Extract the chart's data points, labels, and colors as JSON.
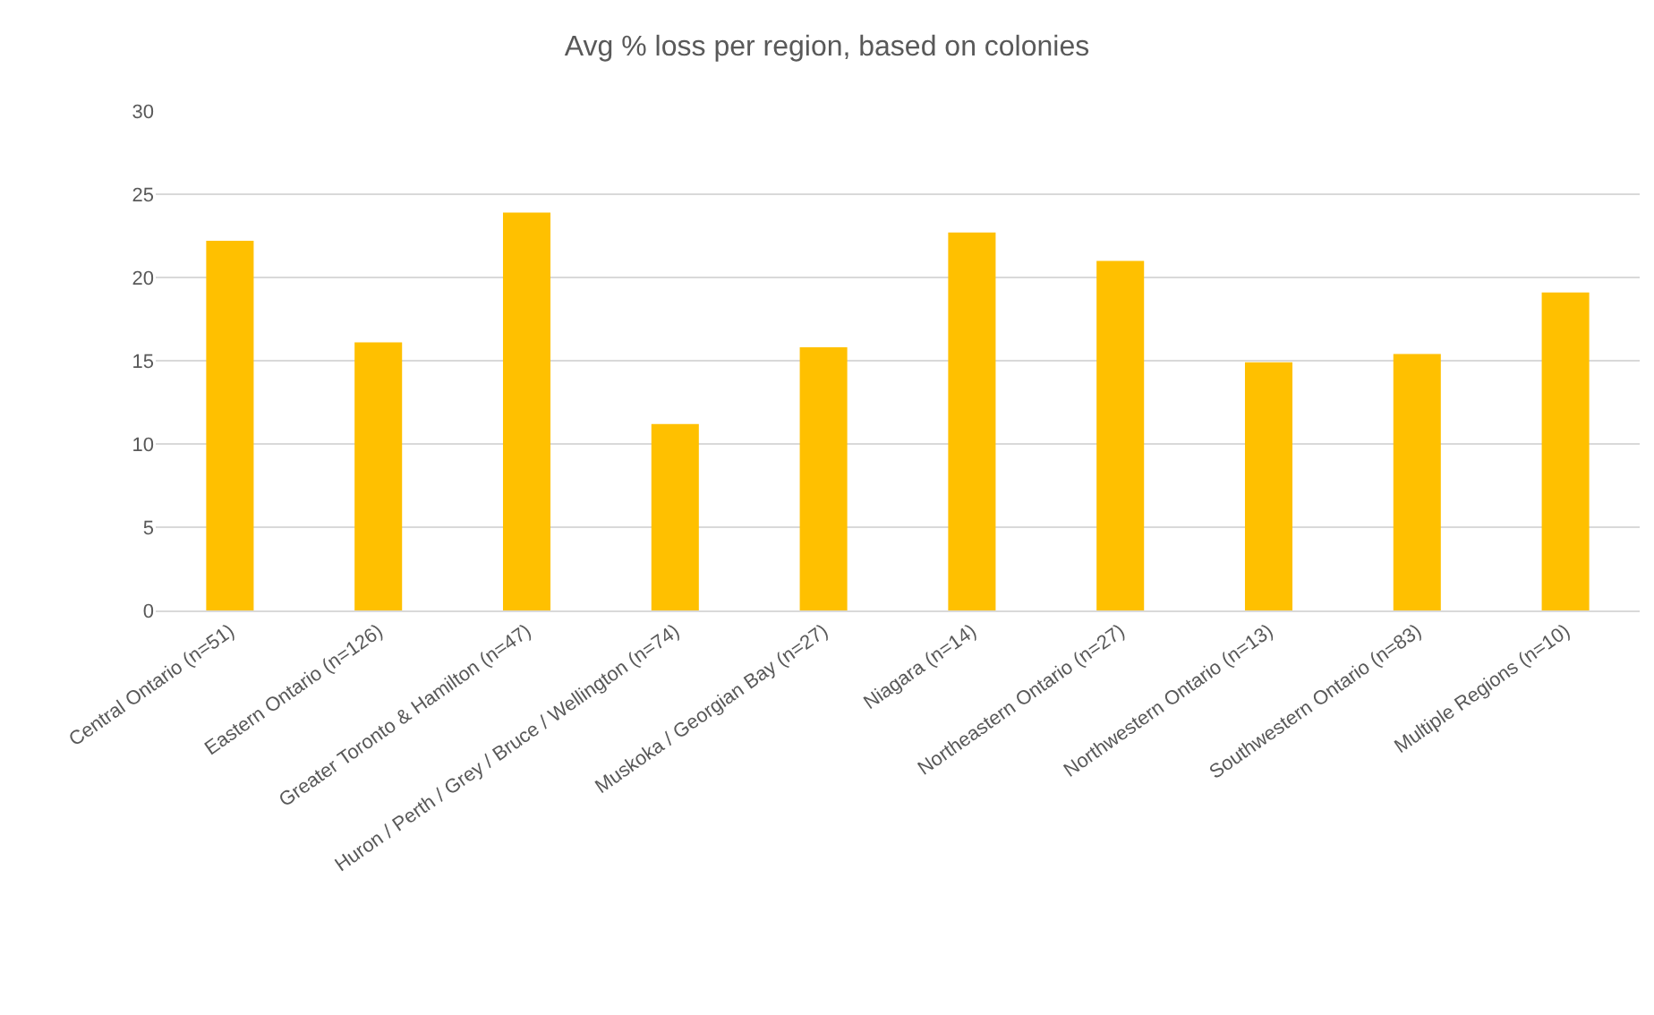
{
  "chart_data": {
    "type": "bar",
    "title": "Avg % loss per region, based on colonies",
    "categories": [
      "Central Ontario (n=51)",
      "Eastern Ontario (n=126)",
      "Greater Toronto & Hamilton (n=47)",
      "Huron / Perth / Grey / Bruce / Wellington (n=74)",
      "Muskoka / Georgian Bay (n=27)",
      "Niagara (n=14)",
      "Northeastern Ontario (n=27)",
      "Northwestern Ontario (n=13)",
      "Southwestern Ontario (n=83)",
      "Multiple Regions (n=10)"
    ],
    "values": [
      22.2,
      16.1,
      23.9,
      11.2,
      15.8,
      22.7,
      21.0,
      14.9,
      15.4,
      19.1
    ],
    "color": "#ffc000",
    "ylim": [
      0,
      30
    ],
    "yticks": [
      0,
      5,
      10,
      15,
      20,
      25,
      30
    ],
    "grid": "y"
  }
}
